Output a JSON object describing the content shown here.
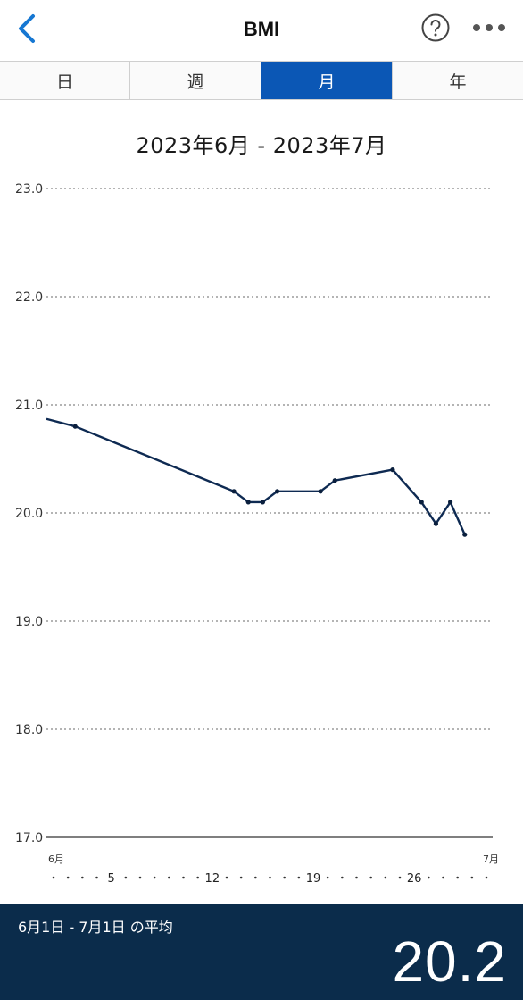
{
  "header": {
    "title": "BMI",
    "back_icon": "chevron-left-icon",
    "help_icon": "question-circle-icon",
    "more_icon": "more-horizontal-icon"
  },
  "tabs": [
    {
      "label": "日",
      "active": false
    },
    {
      "label": "週",
      "active": false
    },
    {
      "label": "月",
      "active": true
    },
    {
      "label": "年",
      "active": false
    }
  ],
  "range_label": "2023年6月 - 2023年7月",
  "colors": {
    "accent": "#0b57b5",
    "line": "#0e2a52",
    "footer_bg": "#0b2c4b",
    "back": "#1677d2"
  },
  "chart_data": {
    "type": "line",
    "ylim": [
      17.0,
      23.0
    ],
    "yticks": [
      "23.0",
      "22.0",
      "21.0",
      "20.0",
      "19.0",
      "18.0",
      "17.0"
    ],
    "x_range": [
      1,
      31
    ],
    "x_month_labels": [
      {
        "day": 1,
        "label": "6月"
      },
      {
        "day": 31,
        "label": "7月"
      }
    ],
    "x_day_labels": [
      {
        "day": 5,
        "label": "5"
      },
      {
        "day": 12,
        "label": "12"
      },
      {
        "day": 19,
        "label": "19"
      },
      {
        "day": 26,
        "label": "26"
      }
    ],
    "series": [
      {
        "incoming_start": 20.87,
        "points": [
          {
            "x": 2.5,
            "y": 20.8
          },
          {
            "x": 13.5,
            "y": 20.2
          },
          {
            "x": 14.5,
            "y": 20.1
          },
          {
            "x": 15.5,
            "y": 20.1
          },
          {
            "x": 16.5,
            "y": 20.2
          },
          {
            "x": 19.5,
            "y": 20.2
          },
          {
            "x": 20.5,
            "y": 20.3
          },
          {
            "x": 24.5,
            "y": 20.4
          },
          {
            "x": 26.5,
            "y": 20.1
          },
          {
            "x": 27.5,
            "y": 19.9
          },
          {
            "x": 28.5,
            "y": 20.1
          },
          {
            "x": 29.5,
            "y": 19.8
          }
        ]
      }
    ]
  },
  "footer": {
    "label": "6月1日 - 7月1日 の平均",
    "average": "20.2"
  }
}
